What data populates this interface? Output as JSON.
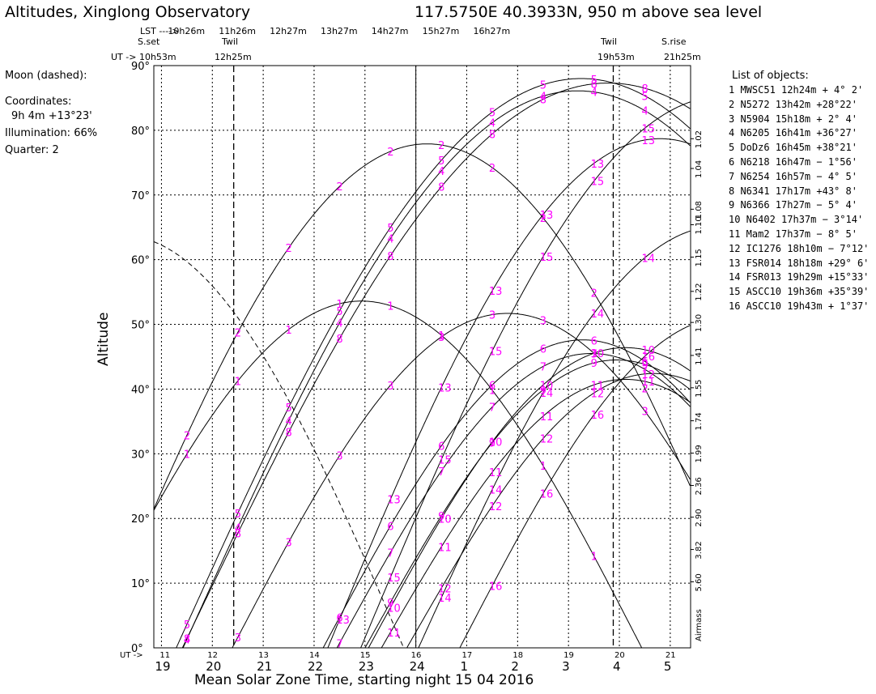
{
  "header": {
    "title": "Altitudes, Xinglong Observatory",
    "location": "117.5750E  40.3933N,  950 m above sea level"
  },
  "lst_row": {
    "label": "LST ---->",
    "ticks": [
      "10h26m",
      "11h26m",
      "12h27m",
      "13h27m",
      "14h27m",
      "15h27m",
      "16h27m"
    ]
  },
  "events": {
    "sset_label": "S.set",
    "ut_label": "UT -> 10h53m",
    "twil1_label": "Twil",
    "twil1_time": "12h25m",
    "twil2_label": "Twil",
    "twil2_time": "19h53m",
    "srise_label": "S.rise",
    "srise_time": "21h25m"
  },
  "moon": {
    "label": "Moon (dashed):",
    "coords_label": "Coordinates:",
    "coords_value": "9h 4m  +13°23'",
    "illumination": "Illumination:  66%",
    "quarter": "Quarter: 2"
  },
  "list_title": "List of objects:",
  "objects": [
    "1  MWSC51  12h24m  + 4° 2'",
    "2  N5272   13h42m  +28°22'",
    "3  N5904   15h18m  + 2° 4'",
    "4  N6205   16h41m  +36°27'",
    "5  DoDz6   16h45m  +38°21'",
    "6  N6218   16h47m  − 1°56'",
    "7  N6254   16h57m  − 4° 5'",
    "8  N6341   17h17m  +43° 8'",
    "9  N6366   17h27m  − 5° 4'",
    "10 N6402   17h37m  − 3°14'",
    "11 Mam2    17h37m  − 8° 5'",
    "12 IC1276  18h10m  − 7°12'",
    "13 FSR014  18h18m  +29° 6'",
    "14 FSR013  19h29m  +15°33'",
    "15 ASCC10  19h36m  +35°39'",
    "16 ASCC10  19h43m  + 1°37'"
  ],
  "chart_data": {
    "type": "line",
    "title": "Altitudes, Xinglong Observatory",
    "xlabel": "Mean Solar Zone Time, starting night 15 04 2016",
    "ylabel": "Altitude",
    "right_label": "Airmass",
    "x_ut_prefix": "UT ->",
    "xlim_ut": [
      10.85,
      21.4
    ],
    "ylim": [
      0,
      90
    ],
    "ut_ticks": [
      "11",
      "12",
      "13",
      "14",
      "15",
      "16",
      "17",
      "18",
      "19",
      "20",
      "21"
    ],
    "local_ticks": [
      "19",
      "20",
      "21",
      "22",
      "23",
      "24",
      "1",
      "2",
      "3",
      "4",
      "5"
    ],
    "y_ticks": [
      "0°",
      "10°",
      "20°",
      "30°",
      "40°",
      "50°",
      "60°",
      "70°",
      "80°",
      "90°"
    ],
    "airmass_ticks": [
      {
        "alt": 78.7,
        "label": "1.02"
      },
      {
        "alt": 74.1,
        "label": "1.04"
      },
      {
        "alt": 67.8,
        "label": "1.08"
      },
      {
        "alt": 65.4,
        "label": "1.10"
      },
      {
        "alt": 60.4,
        "label": "1.15"
      },
      {
        "alt": 55.1,
        "label": "1.22"
      },
      {
        "alt": 50.3,
        "label": "1.30"
      },
      {
        "alt": 45.2,
        "label": "1.41"
      },
      {
        "alt": 40.2,
        "label": "1.55"
      },
      {
        "alt": 35.1,
        "label": "1.74"
      },
      {
        "alt": 30.1,
        "label": "1.99"
      },
      {
        "alt": 25.1,
        "label": "2.36"
      },
      {
        "alt": 20.2,
        "label": "2.90"
      },
      {
        "alt": 15.2,
        "label": "3.82"
      },
      {
        "alt": 10.2,
        "label": "5.60"
      }
    ],
    "sunset_ut": 10.88,
    "twilight_ut": [
      12.42,
      19.88
    ],
    "midnight_ut": 16.0,
    "series": [
      {
        "name": "1",
        "peak_ut": 14.93,
        "peak_alt": 53.6,
        "hw": 5.4
      },
      {
        "name": "2",
        "peak_ut": 16.22,
        "peak_alt": 77.9,
        "hw": 6.4
      },
      {
        "name": "3",
        "peak_ut": 17.8,
        "peak_alt": 51.7,
        "hw": 5.3
      },
      {
        "name": "4",
        "peak_ut": 19.18,
        "peak_alt": 86.1,
        "hw": 7.6
      },
      {
        "name": "5",
        "peak_ut": 19.25,
        "peak_alt": 88.0,
        "hw": 7.8
      },
      {
        "name": "6",
        "peak_ut": 19.28,
        "peak_alt": 47.6,
        "hw": 5.0
      },
      {
        "name": "7",
        "peak_ut": 19.45,
        "peak_alt": 45.5,
        "hw": 4.9
      },
      {
        "name": "8",
        "peak_ut": 19.78,
        "peak_alt": 87.3,
        "hw": 8.2
      },
      {
        "name": "9",
        "peak_ut": 19.95,
        "peak_alt": 44.5,
        "hw": 4.85
      },
      {
        "name": "10",
        "peak_ut": 20.12,
        "peak_alt": 46.4,
        "hw": 4.95
      },
      {
        "name": "11",
        "peak_ut": 20.12,
        "peak_alt": 41.5,
        "hw": 4.7
      },
      {
        "name": "12",
        "peak_ut": 20.67,
        "peak_alt": 42.4,
        "hw": 4.75
      },
      {
        "name": "13",
        "peak_ut": 20.8,
        "peak_alt": 78.7,
        "hw": 6.4
      },
      {
        "name": "14",
        "peak_ut": 21.97,
        "peak_alt": 65.2,
        "hw": 5.8
      },
      {
        "name": "15",
        "peak_ut": 22.06,
        "peak_alt": 85.3,
        "hw": 7.0
      },
      {
        "name": "16",
        "peak_ut": 22.17,
        "peak_alt": 51.2,
        "hw": 5.2
      }
    ],
    "moon_series": {
      "peak_ut": 10.25,
      "peak_alt": 63.7,
      "hw": 5.4
    },
    "label_times_ut": [
      11.5,
      12.5,
      13.5,
      14.5,
      15.5,
      16.5,
      17.5,
      18.5,
      19.5,
      20.5
    ]
  }
}
